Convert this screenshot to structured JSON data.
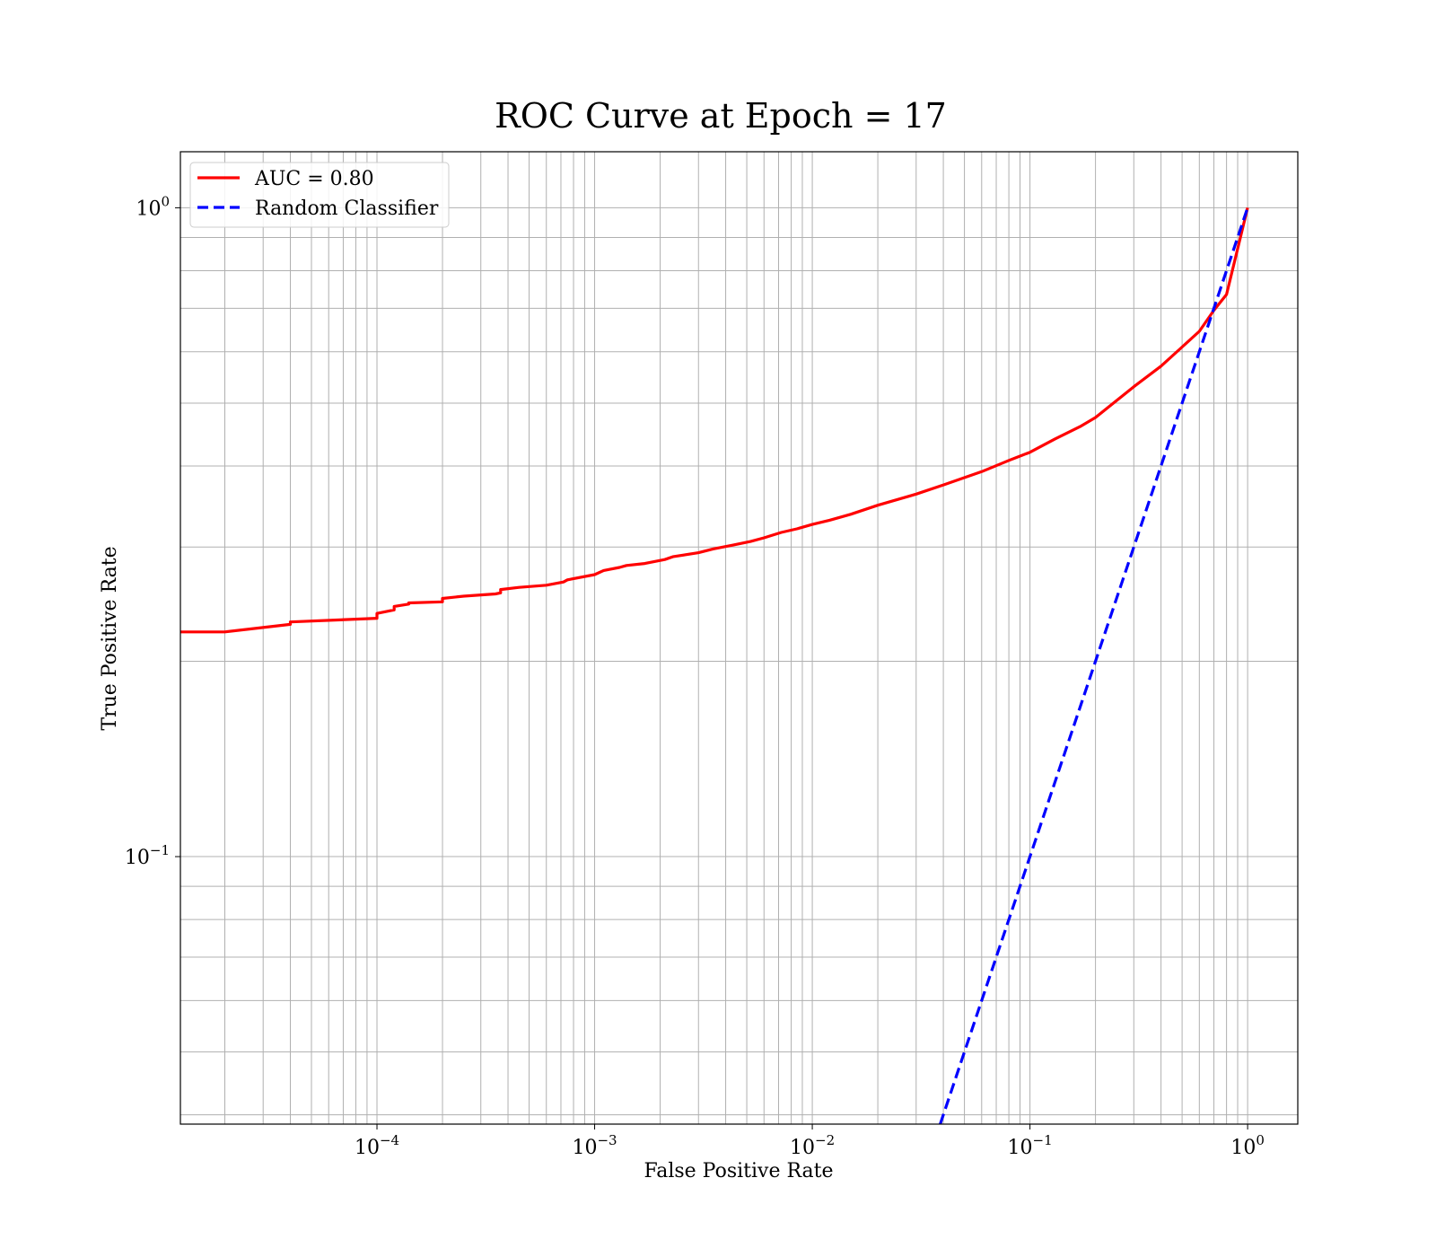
{
  "chart_data": {
    "type": "line",
    "title": "ROC Curve at Epoch = 17",
    "xlabel": "False Positive Rate",
    "ylabel": "True Positive Rate",
    "xscale": "log",
    "yscale": "log",
    "xlim": [
      1.25e-05,
      1.7
    ],
    "ylim": [
      0.0387,
      1.22
    ],
    "grid": true,
    "legend_position": "upper-left",
    "x_ticks": [
      {
        "base": "10",
        "exp": "−4",
        "value": 0.0001
      },
      {
        "base": "10",
        "exp": "−3",
        "value": 0.001
      },
      {
        "base": "10",
        "exp": "−2",
        "value": 0.01
      },
      {
        "base": "10",
        "exp": "−1",
        "value": 0.1
      },
      {
        "base": "10",
        "exp": "0",
        "value": 1
      }
    ],
    "y_ticks": [
      {
        "base": "10",
        "exp": "−1",
        "value": 0.1
      },
      {
        "base": "10",
        "exp": "0",
        "value": 1
      }
    ],
    "series": [
      {
        "name": "AUC = 0.80",
        "color": "#ff0000",
        "style": "solid",
        "x": [
          1.25e-05,
          2e-05,
          4e-05,
          4e-05,
          0.0001,
          0.0001,
          0.00012,
          0.00012,
          0.00014,
          0.00014,
          0.0002,
          0.0002,
          0.00025,
          0.00035,
          0.00037,
          0.00037,
          0.00045,
          0.0006,
          0.00072,
          0.00075,
          0.001,
          0.0011,
          0.0013,
          0.0014,
          0.0017,
          0.0021,
          0.0023,
          0.003,
          0.0035,
          0.0043,
          0.0052,
          0.006,
          0.0072,
          0.0085,
          0.01,
          0.012,
          0.015,
          0.02,
          0.03,
          0.04,
          0.06,
          0.08,
          0.1,
          0.13,
          0.17,
          0.2,
          0.3,
          0.4,
          0.5,
          0.6,
          0.7,
          0.8,
          1.0
        ],
        "y": [
          0.222,
          0.222,
          0.228,
          0.23,
          0.233,
          0.237,
          0.24,
          0.243,
          0.245,
          0.246,
          0.247,
          0.25,
          0.252,
          0.254,
          0.255,
          0.258,
          0.26,
          0.262,
          0.265,
          0.267,
          0.272,
          0.276,
          0.279,
          0.281,
          0.283,
          0.287,
          0.29,
          0.294,
          0.298,
          0.302,
          0.306,
          0.31,
          0.316,
          0.32,
          0.325,
          0.33,
          0.337,
          0.348,
          0.362,
          0.374,
          0.392,
          0.408,
          0.42,
          0.44,
          0.46,
          0.475,
          0.53,
          0.57,
          0.61,
          0.645,
          0.695,
          0.735,
          1.0
        ]
      },
      {
        "name": "Random Classifier",
        "color": "#0000ff",
        "style": "dashed",
        "x": [
          0.0387,
          1.0
        ],
        "y": [
          0.0387,
          1.0
        ]
      }
    ]
  }
}
